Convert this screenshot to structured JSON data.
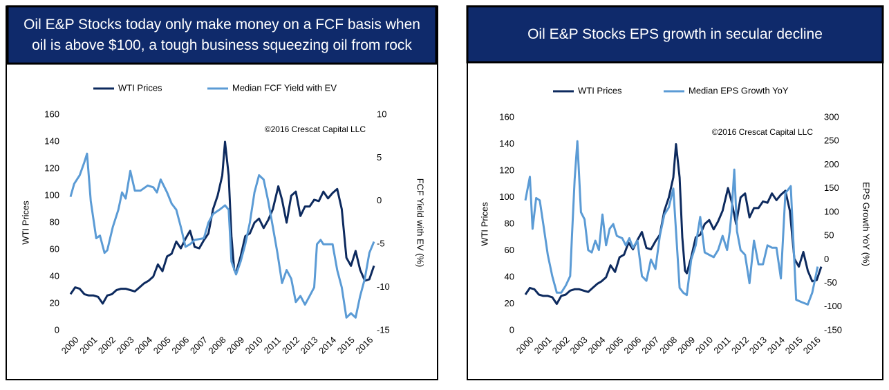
{
  "chart_data": [
    {
      "type": "line",
      "title": "Oil E&P Stocks today only make money on a FCF basis when oil is above $100, a tough business squeezing oil from rock",
      "annotation": "©2016 Crescat Capital LLC",
      "ylabel": "WTI Prices",
      "y2label": "FCF Yield with EV (%)",
      "xlim": [
        2000,
        2016.5
      ],
      "xticks": [
        2000,
        2001,
        2002,
        2003,
        2004,
        2005,
        2006,
        2007,
        2008,
        2009,
        2010,
        2011,
        2012,
        2013,
        2014,
        2015,
        2016
      ],
      "ylim": [
        0,
        160
      ],
      "yticks": [
        0,
        20,
        40,
        60,
        80,
        100,
        120,
        140,
        160
      ],
      "y2lim": [
        -15,
        10
      ],
      "y2ticks": [
        -15,
        -10,
        -5,
        0,
        5,
        10
      ],
      "series": [
        {
          "name": "WTI Prices",
          "color": "#0d2a5e",
          "x": [
            2000,
            2000.25,
            2000.5,
            2000.75,
            2001,
            2001.25,
            2001.5,
            2001.75,
            2002,
            2002.25,
            2002.5,
            2002.75,
            2003,
            2003.25,
            2003.5,
            2003.75,
            2004,
            2004.25,
            2004.5,
            2004.75,
            2005,
            2005.25,
            2005.5,
            2005.75,
            2006,
            2006.25,
            2006.5,
            2006.75,
            2007,
            2007.25,
            2007.5,
            2007.75,
            2008,
            2008.25,
            2008.4,
            2008.6,
            2008.75,
            2008.9,
            2009,
            2009.25,
            2009.5,
            2009.75,
            2010,
            2010.25,
            2010.5,
            2010.75,
            2011,
            2011.3,
            2011.5,
            2011.75,
            2012,
            2012.25,
            2012.5,
            2012.75,
            2013,
            2013.25,
            2013.5,
            2013.75,
            2014,
            2014.25,
            2014.5,
            2014.75,
            2015,
            2015.25,
            2015.5,
            2015.75,
            2016,
            2016.25,
            2016.5
          ],
          "values": [
            27,
            32,
            31,
            27,
            26,
            26,
            25,
            20,
            26,
            27,
            30,
            31,
            31,
            30,
            29,
            32,
            35,
            37,
            40,
            49,
            44,
            55,
            57,
            66,
            61,
            68,
            74,
            62,
            61,
            67,
            72,
            90,
            100,
            115,
            140,
            115,
            70,
            45,
            43,
            55,
            70,
            72,
            80,
            83,
            76,
            82,
            90,
            107,
            97,
            80,
            100,
            103,
            85,
            92,
            92,
            97,
            96,
            103,
            98,
            102,
            105,
            90,
            54,
            48,
            59,
            45,
            37,
            38,
            48
          ]
        },
        {
          "name": "Median FCF Yield with EV",
          "color": "#5b9bd5",
          "axis": "y2",
          "x": [
            2000,
            2000.2,
            2000.5,
            2000.75,
            2000.9,
            2001.1,
            2001.4,
            2001.6,
            2001.85,
            2002,
            2002.3,
            2002.6,
            2002.8,
            2003,
            2003.25,
            2003.5,
            2003.8,
            2004.2,
            2004.5,
            2004.7,
            2004.9,
            2005.25,
            2005.5,
            2005.75,
            2006,
            2006.25,
            2006.5,
            2006.75,
            2007.25,
            2007.5,
            2007.75,
            2008.1,
            2008.4,
            2008.6,
            2008.75,
            2009,
            2009.25,
            2009.5,
            2009.75,
            2010,
            2010.25,
            2010.5,
            2010.75,
            2011,
            2011.25,
            2011.5,
            2011.75,
            2012,
            2012.25,
            2012.5,
            2012.75,
            2013,
            2013.25,
            2013.4,
            2013.6,
            2013.75,
            2014,
            2014.25,
            2014.5,
            2014.75,
            2015,
            2015.25,
            2015.5,
            2015.75,
            2016,
            2016.25,
            2016.5
          ],
          "values": [
            0.5,
            2,
            3,
            4.5,
            5.5,
            0,
            -4.3,
            -4,
            -6,
            -5.7,
            -3,
            -1,
            1,
            0.3,
            3.5,
            1.2,
            1.2,
            1.8,
            1.6,
            1,
            2.5,
            1,
            -0.3,
            -1,
            -3,
            -5.3,
            -5,
            -4.5,
            -4.3,
            -2.5,
            -1.5,
            -1,
            -0.5,
            -1,
            -7,
            -8.5,
            -7,
            -5,
            -2.5,
            1,
            3,
            2.5,
            0,
            -3,
            -6,
            -9.5,
            -8,
            -9,
            -11.7,
            -11,
            -12,
            -11,
            -10,
            -5,
            -4.5,
            -5,
            -5,
            -5,
            -8,
            -10,
            -13.5,
            -13,
            -13.5,
            -11,
            -9,
            -6,
            -4.7
          ]
        }
      ]
    },
    {
      "type": "line",
      "title": "Oil E&P Stocks EPS growth in secular decline",
      "annotation": "©2016 Crescat Capital LLC",
      "ylabel": "WTI Prices",
      "y2label": "EPS Growth YoY (%)",
      "xlim": [
        2000,
        2016.5
      ],
      "xticks": [
        2000,
        2001,
        2002,
        2003,
        2004,
        2005,
        2006,
        2007,
        2008,
        2009,
        2010,
        2011,
        2012,
        2013,
        2014,
        2015,
        2016
      ],
      "ylim": [
        0,
        160
      ],
      "yticks": [
        0,
        20,
        40,
        60,
        80,
        100,
        120,
        140,
        160
      ],
      "y2lim": [
        -150,
        300
      ],
      "y2ticks": [
        -150,
        -100,
        -50,
        0,
        50,
        100,
        150,
        200,
        250,
        300
      ],
      "series": [
        {
          "name": "WTI Prices",
          "color": "#0d2a5e",
          "x": [
            2000,
            2000.25,
            2000.5,
            2000.75,
            2001,
            2001.25,
            2001.5,
            2001.75,
            2002,
            2002.25,
            2002.5,
            2002.75,
            2003,
            2003.25,
            2003.5,
            2003.75,
            2004,
            2004.25,
            2004.5,
            2004.75,
            2005,
            2005.25,
            2005.5,
            2005.75,
            2006,
            2006.25,
            2006.5,
            2006.75,
            2007,
            2007.25,
            2007.5,
            2007.75,
            2008,
            2008.25,
            2008.4,
            2008.6,
            2008.75,
            2008.9,
            2009,
            2009.25,
            2009.5,
            2009.75,
            2010,
            2010.25,
            2010.5,
            2010.75,
            2011,
            2011.3,
            2011.5,
            2011.75,
            2012,
            2012.25,
            2012.5,
            2012.75,
            2013,
            2013.25,
            2013.5,
            2013.75,
            2014,
            2014.25,
            2014.5,
            2014.75,
            2015,
            2015.25,
            2015.5,
            2015.75,
            2016,
            2016.25,
            2016.5
          ],
          "values": [
            27,
            32,
            31,
            27,
            26,
            26,
            25,
            20,
            26,
            27,
            30,
            31,
            31,
            30,
            29,
            32,
            35,
            37,
            40,
            49,
            44,
            55,
            57,
            66,
            61,
            68,
            74,
            62,
            61,
            67,
            72,
            90,
            100,
            115,
            140,
            115,
            70,
            45,
            43,
            55,
            70,
            72,
            80,
            83,
            76,
            82,
            90,
            107,
            97,
            80,
            100,
            103,
            85,
            92,
            92,
            97,
            96,
            103,
            98,
            102,
            105,
            90,
            54,
            48,
            59,
            45,
            37,
            38,
            48
          ]
        },
        {
          "name": "Median EPS Growth YoY",
          "color": "#5b9bd5",
          "axis": "y2",
          "x": [
            2000,
            2000.25,
            2000.4,
            2000.6,
            2000.8,
            2001,
            2001.25,
            2001.5,
            2001.75,
            2002,
            2002.25,
            2002.5,
            2002.6,
            2002.75,
            2002.9,
            2003.1,
            2003.3,
            2003.5,
            2003.7,
            2003.9,
            2004.1,
            2004.3,
            2004.5,
            2004.7,
            2004.9,
            2005.1,
            2005.4,
            2005.6,
            2005.8,
            2006,
            2006.25,
            2006.5,
            2006.75,
            2007,
            2007.25,
            2007.5,
            2007.75,
            2008,
            2008.25,
            2008.4,
            2008.6,
            2008.8,
            2009,
            2009.25,
            2009.5,
            2009.75,
            2010,
            2010.25,
            2010.5,
            2010.75,
            2011,
            2011.25,
            2011.4,
            2011.5,
            2011.65,
            2011.8,
            2012,
            2012.25,
            2012.5,
            2012.75,
            2013,
            2013.25,
            2013.5,
            2013.75,
            2014,
            2014.25,
            2014.5,
            2014.8,
            2015.1,
            2015.4,
            2015.75,
            2016,
            2016.3
          ],
          "values": [
            125,
            175,
            65,
            130,
            125,
            75,
            10,
            -35,
            -70,
            -70,
            -55,
            -35,
            50,
            170,
            250,
            100,
            85,
            20,
            15,
            40,
            20,
            95,
            30,
            65,
            75,
            50,
            45,
            30,
            45,
            25,
            40,
            -35,
            -45,
            0,
            -20,
            50,
            95,
            110,
            150,
            60,
            -60,
            -70,
            -75,
            0,
            30,
            90,
            15,
            10,
            5,
            20,
            50,
            20,
            60,
            100,
            190,
            60,
            20,
            10,
            -50,
            40,
            -10,
            -10,
            30,
            25,
            25,
            -40,
            140,
            155,
            -85,
            -90,
            -95,
            -70,
            -15
          ]
        }
      ]
    }
  ]
}
